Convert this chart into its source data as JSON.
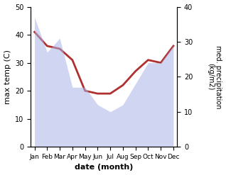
{
  "months": [
    "Jan",
    "Feb",
    "Mar",
    "Apr",
    "May",
    "Jun",
    "Jul",
    "Aug",
    "Sep",
    "Oct",
    "Nov",
    "Dec"
  ],
  "temp_max": [
    41,
    36,
    35,
    31,
    20,
    19,
    19,
    22,
    27,
    31,
    30,
    36
  ],
  "precipitation": [
    37,
    27,
    31,
    17,
    17,
    12,
    10,
    12,
    18,
    24,
    24,
    29
  ],
  "temp_color": "#b03030",
  "precip_color": "#aab4e8",
  "precip_fill_alpha": 0.55,
  "xlabel": "date (month)",
  "ylabel_left": "max temp (C)",
  "ylabel_right": "med. precipitation\n(kg/m2)",
  "ylim_left": [
    0,
    50
  ],
  "ylim_right": [
    0,
    40
  ],
  "yticks_left": [
    0,
    10,
    20,
    30,
    40,
    50
  ],
  "yticks_right": [
    0,
    10,
    20,
    30,
    40
  ],
  "temp_linewidth": 2.0,
  "bg_color": "#ffffff"
}
